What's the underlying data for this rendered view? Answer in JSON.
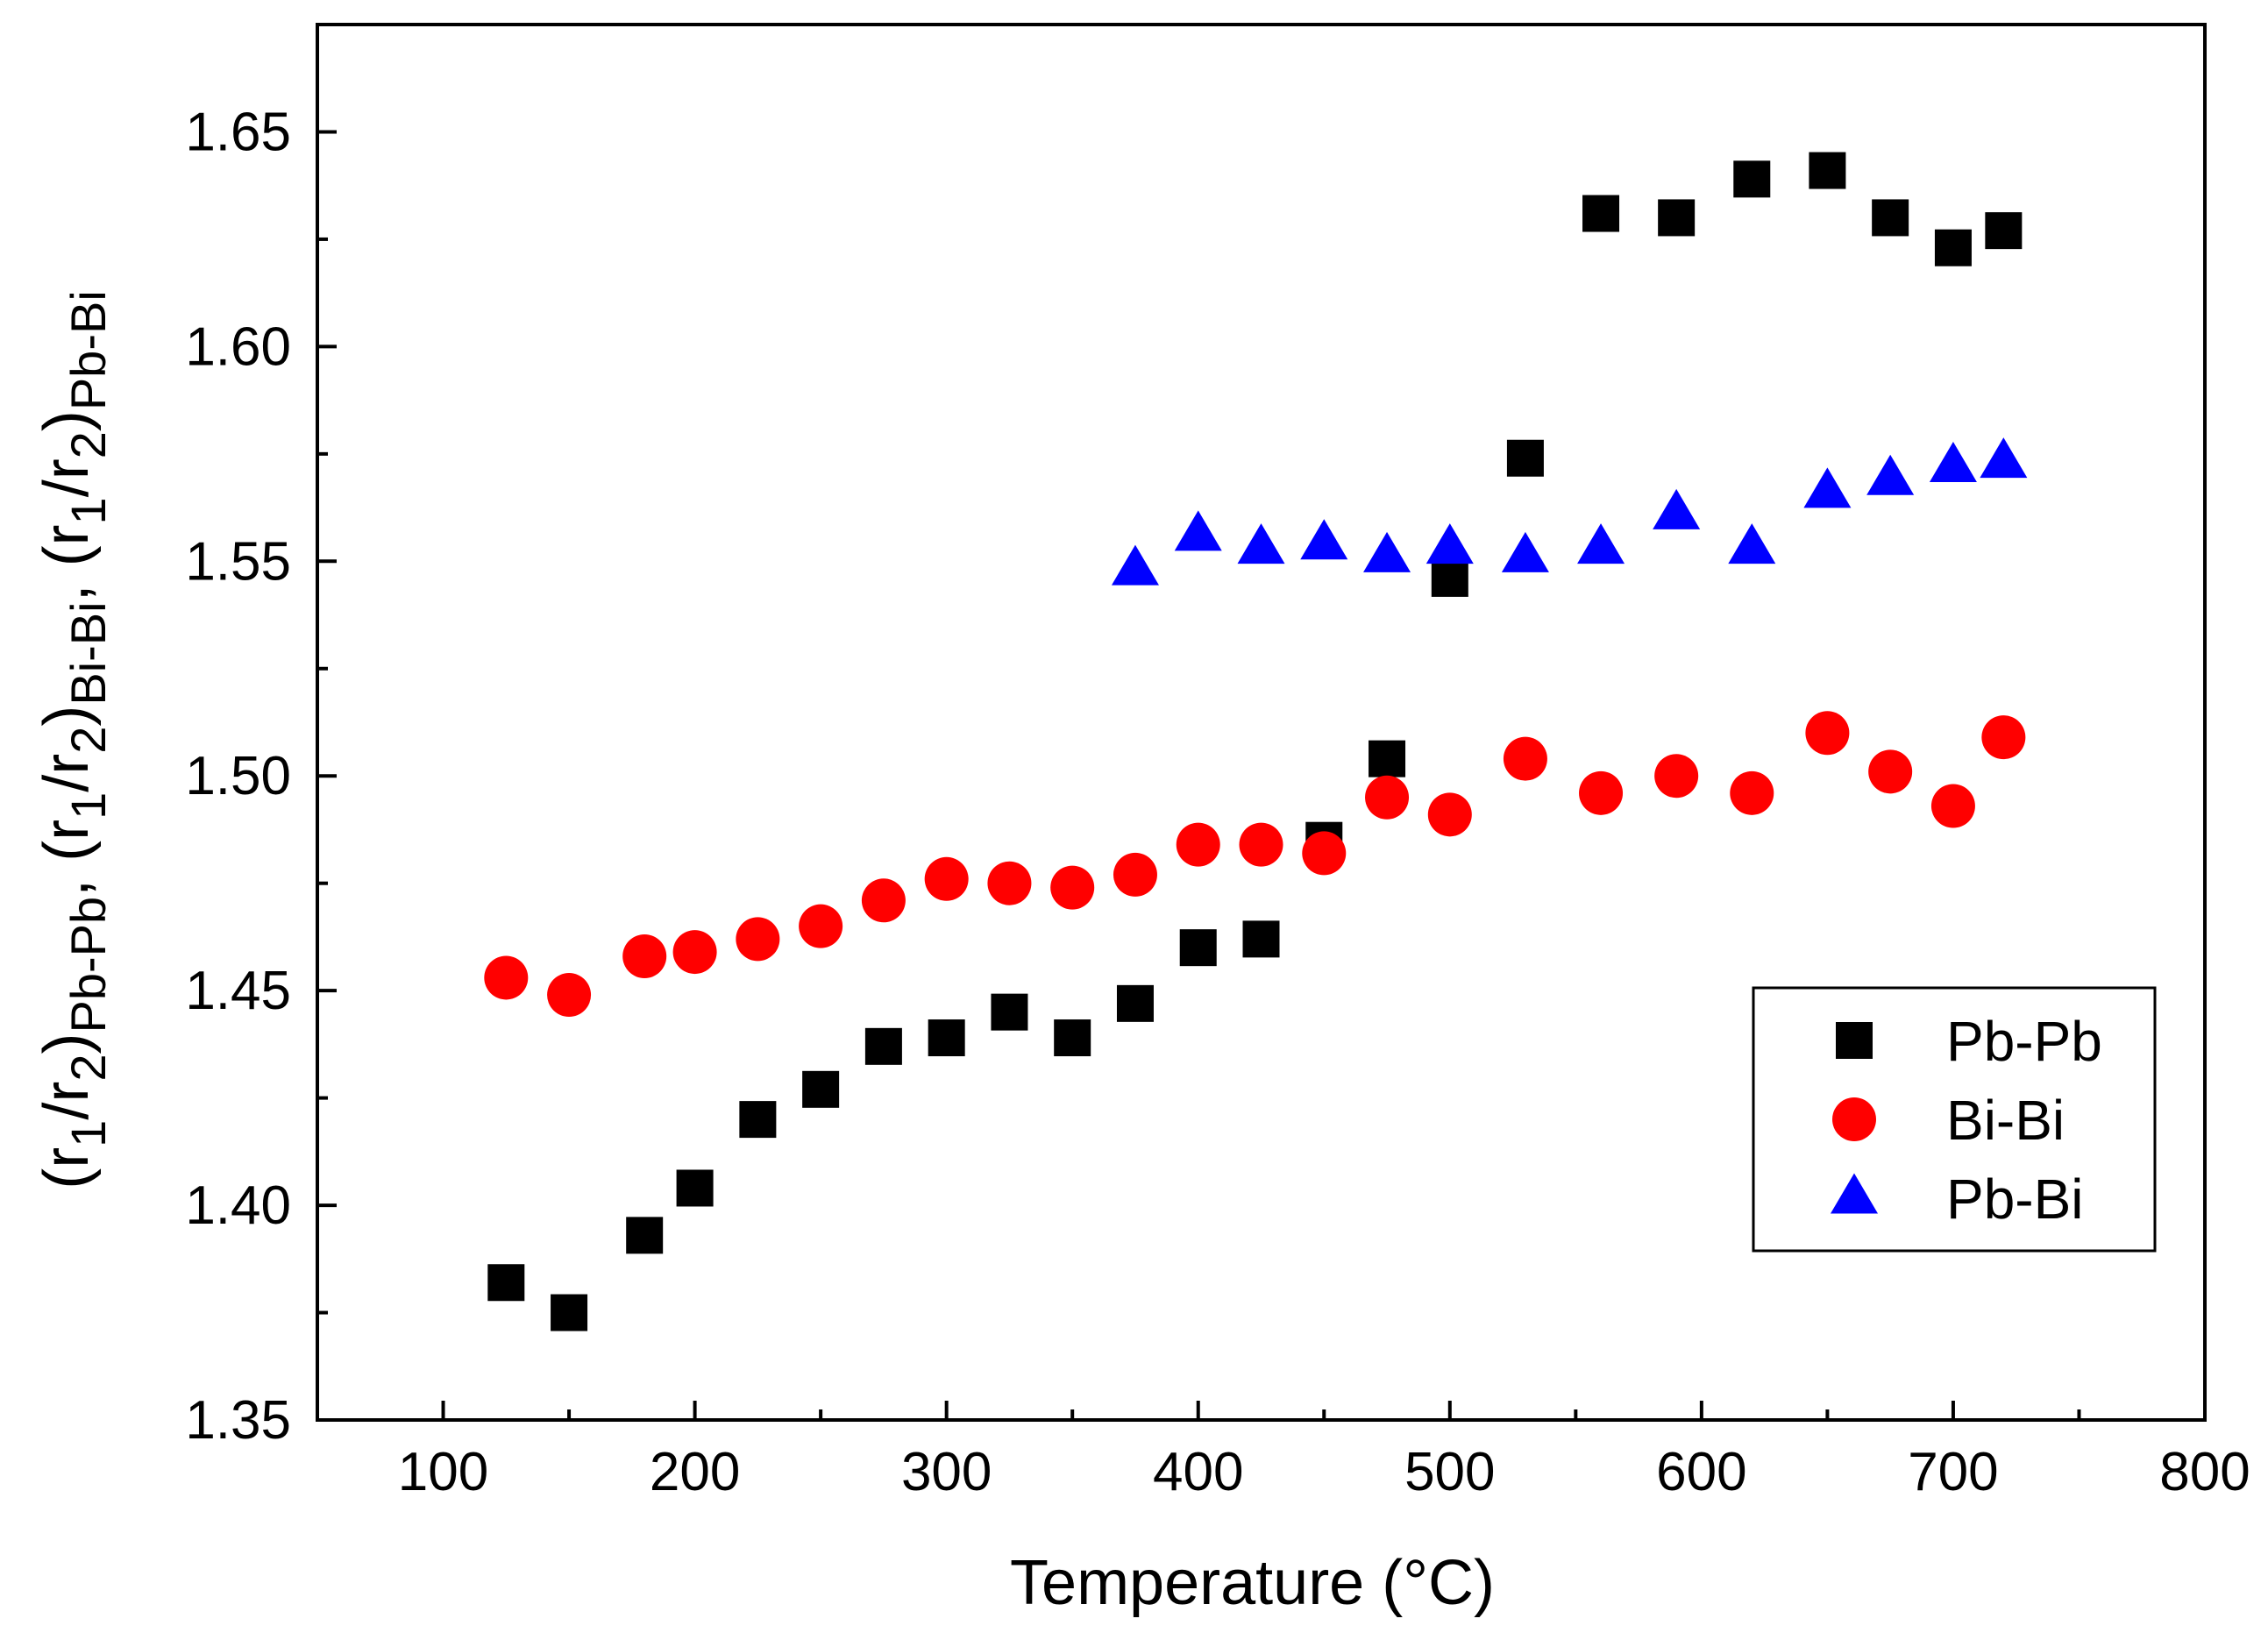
{
  "chart_data": {
    "type": "scatter",
    "xlabel": "Temperature (°C)",
    "ylabel": {
      "parts": [
        {
          "t": "(r"
        },
        {
          "t": "1",
          "sub": true
        },
        {
          "t": "/r"
        },
        {
          "t": "2",
          "sub": true
        },
        {
          "t": ")"
        },
        {
          "t": "Pb-Pb",
          "sub": true
        },
        {
          "t": ", (r"
        },
        {
          "t": "1",
          "sub": true
        },
        {
          "t": "/r"
        },
        {
          "t": "2",
          "sub": true
        },
        {
          "t": ")"
        },
        {
          "t": "Bi-Bi",
          "sub": true
        },
        {
          "t": ", (r"
        },
        {
          "t": "1",
          "sub": true
        },
        {
          "t": "/r"
        },
        {
          "t": "2",
          "sub": true
        },
        {
          "t": ")"
        },
        {
          "t": "Pb-Bi",
          "sub": true
        }
      ]
    },
    "xlim": [
      50,
      800
    ],
    "ylim": [
      1.35,
      1.675
    ],
    "xticks": [
      100,
      200,
      300,
      400,
      500,
      600,
      700,
      800
    ],
    "xtick_labels": [
      "100",
      "200",
      "300",
      "400",
      "500",
      "600",
      "700",
      "800"
    ],
    "xminor": [
      150,
      250,
      350,
      450,
      550,
      650,
      750
    ],
    "yticks": [
      1.35,
      1.4,
      1.45,
      1.5,
      1.55,
      1.6,
      1.65
    ],
    "ytick_labels": [
      "1.35",
      "1.40",
      "1.45",
      "1.50",
      "1.55",
      "1.60",
      "1.65"
    ],
    "yminor": [
      1.375,
      1.425,
      1.475,
      1.525,
      1.575,
      1.625
    ],
    "legend_position": "lower-right",
    "series": [
      {
        "name": "Pb-Pb",
        "marker": "square",
        "color": "#000000",
        "x": [
          125,
          150,
          180,
          200,
          225,
          250,
          275,
          300,
          325,
          350,
          375,
          400,
          425,
          450,
          475,
          500,
          530,
          560,
          590,
          620,
          650,
          675,
          700,
          720
        ],
        "y": [
          1.382,
          1.375,
          1.393,
          1.404,
          1.42,
          1.427,
          1.437,
          1.439,
          1.445,
          1.439,
          1.447,
          1.46,
          1.462,
          1.485,
          1.504,
          1.546,
          1.574,
          1.631,
          1.63,
          1.639,
          1.641,
          1.63,
          1.623,
          1.627
        ]
      },
      {
        "name": "Bi-Bi",
        "marker": "circle",
        "color": "#ff0000",
        "x": [
          125,
          150,
          180,
          200,
          225,
          250,
          275,
          300,
          325,
          350,
          375,
          400,
          425,
          450,
          475,
          500,
          530,
          560,
          590,
          620,
          650,
          675,
          700,
          720
        ],
        "y": [
          1.453,
          1.449,
          1.458,
          1.459,
          1.462,
          1.465,
          1.471,
          1.476,
          1.475,
          1.474,
          1.477,
          1.484,
          1.484,
          1.482,
          1.495,
          1.491,
          1.504,
          1.496,
          1.5,
          1.496,
          1.51,
          1.501,
          1.493,
          1.509
        ]
      },
      {
        "name": "Pb-Bi",
        "marker": "triangle",
        "color": "#0000ff",
        "x": [
          375,
          400,
          425,
          450,
          475,
          500,
          530,
          560,
          590,
          620,
          650,
          675,
          700,
          720
        ],
        "y": [
          1.548,
          1.556,
          1.553,
          1.554,
          1.551,
          1.553,
          1.551,
          1.553,
          1.561,
          1.553,
          1.566,
          1.569,
          1.572,
          1.573
        ]
      }
    ]
  }
}
